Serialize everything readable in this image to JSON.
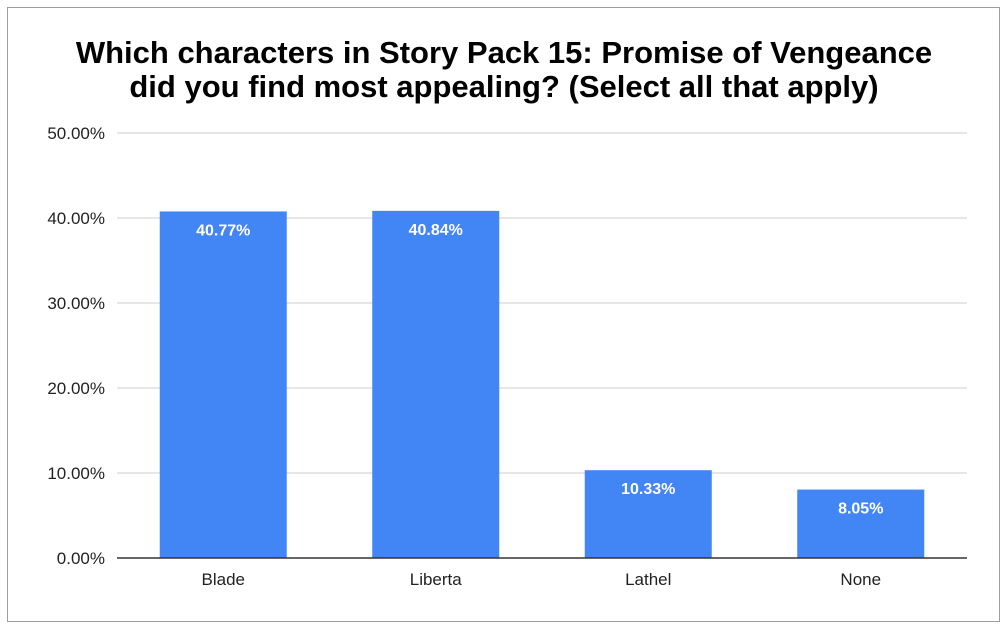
{
  "chart_data": {
    "type": "bar",
    "title_lines": [
      "Which characters in Story Pack 15: Promise of Vengeance",
      "did you find most appealing? (Select all that apply)"
    ],
    "categories": [
      "Blade",
      "Liberta",
      "Lathel",
      "None"
    ],
    "values": [
      40.77,
      40.84,
      10.33,
      8.05
    ],
    "data_labels": [
      "40.77%",
      "40.84%",
      "10.33%",
      "8.05%"
    ],
    "y_ticks": [
      0,
      10,
      20,
      30,
      40,
      50
    ],
    "y_tick_labels": [
      "0.00%",
      "10.00%",
      "20.00%",
      "30.00%",
      "40.00%",
      "50.00%"
    ],
    "ylim": [
      0,
      50
    ],
    "grid": true,
    "legend": "none",
    "bar_color": "#4285f4"
  }
}
